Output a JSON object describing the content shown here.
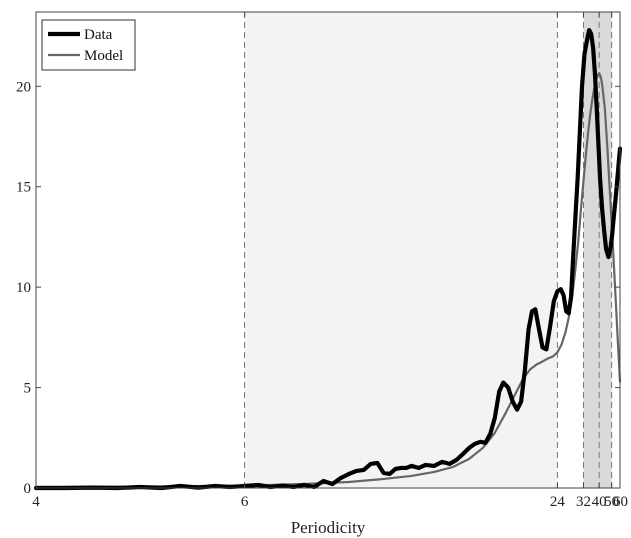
{
  "chart_data": {
    "type": "line",
    "title": "",
    "xlabel": "Periodicity",
    "ylabel": "",
    "x_scale": "reciprocal",
    "xlim": [
      4,
      60
    ],
    "ylim": [
      0,
      23.7
    ],
    "x_ticks": [
      4,
      6,
      24,
      32,
      40,
      50,
      60
    ],
    "x_tick_labels": [
      "4",
      "6",
      "24",
      "32",
      "40",
      "50",
      "60"
    ],
    "y_ticks": [
      0,
      5,
      10,
      15,
      20
    ],
    "y_tick_labels": [
      "0",
      "5",
      "10",
      "15",
      "20"
    ],
    "grid": false,
    "legend": {
      "position": "top-left"
    },
    "shaded_bands": [
      {
        "from": 6,
        "to": 24,
        "color": "#f3f3f3"
      },
      {
        "from": 32,
        "to": 50,
        "color": "#d9d9d9"
      }
    ],
    "reference_lines": [
      6,
      24,
      32,
      40,
      50
    ],
    "series": [
      {
        "name": "Data",
        "color": "#000000",
        "x": [
          4,
          4.2,
          4.4,
          4.6,
          4.8,
          5,
          5.2,
          5.4,
          5.6,
          5.8,
          6,
          6.2,
          6.4,
          6.6,
          6.8,
          7,
          7.2,
          7.4,
          7.6,
          7.8,
          8,
          8.2,
          8.4,
          8.6,
          8.8,
          9,
          9.2,
          9.4,
          9.6,
          9.8,
          10,
          10.3,
          10.6,
          11,
          11.4,
          11.8,
          12.2,
          12.6,
          13,
          13.4,
          13.8,
          14.2,
          14.6,
          15,
          15.4,
          15.8,
          16.3,
          16.8,
          17.3,
          17.8,
          18.3,
          18.8,
          19.3,
          19.8,
          20.4,
          21,
          21.7,
          22.4,
          23.2,
          24,
          24.8,
          25.5,
          26.2,
          26.9,
          27.6,
          28.3,
          29,
          29.8,
          30.6,
          31.4,
          32.4,
          33.5,
          34.5,
          35.5,
          36.5,
          37.5,
          38.5,
          39.5,
          40.6,
          42,
          43.5,
          45,
          47,
          49,
          50.5,
          52,
          54,
          56,
          58,
          60
        ],
        "values": [
          0.0,
          0.0,
          0.02,
          0.0,
          0.05,
          0.0,
          0.1,
          0.02,
          0.1,
          0.05,
          0.1,
          0.15,
          0.05,
          0.12,
          0.05,
          0.15,
          0.05,
          0.35,
          0.2,
          0.5,
          0.7,
          0.85,
          0.9,
          1.2,
          1.25,
          0.75,
          0.7,
          0.95,
          1.0,
          1.0,
          1.1,
          1.0,
          1.15,
          1.1,
          1.3,
          1.2,
          1.4,
          1.7,
          2.0,
          2.2,
          2.3,
          2.25,
          2.7,
          3.5,
          4.8,
          5.25,
          5.0,
          4.3,
          3.9,
          4.3,
          5.9,
          7.9,
          8.8,
          8.9,
          7.9,
          7.0,
          6.9,
          8.0,
          9.3,
          9.8,
          9.9,
          9.6,
          8.8,
          8.7,
          9.5,
          11.6,
          13.5,
          15.5,
          17.8,
          20.0,
          21.6,
          22.3,
          22.8,
          22.6,
          21.9,
          20.6,
          18.9,
          17.2,
          15.4,
          13.9,
          12.8,
          11.9,
          11.5,
          12.0,
          12.6,
          13.4,
          14.3,
          15.2,
          16.1,
          16.9
        ]
      },
      {
        "name": "Model",
        "color": "#666666",
        "x": [
          4,
          5,
          6,
          7,
          8,
          9,
          10,
          11,
          12,
          13,
          14,
          15,
          16,
          17,
          18,
          19,
          20,
          21,
          22,
          23,
          24,
          25,
          26,
          27,
          28,
          29,
          30,
          31,
          32,
          33,
          34,
          35,
          36,
          37,
          38,
          39,
          40,
          41,
          42,
          44,
          46,
          48,
          50,
          52,
          54,
          56,
          58,
          60
        ],
        "values": [
          0.05,
          0.08,
          0.12,
          0.2,
          0.3,
          0.45,
          0.6,
          0.8,
          1.05,
          1.45,
          2.0,
          2.75,
          3.7,
          4.6,
          5.4,
          5.9,
          6.15,
          6.3,
          6.45,
          6.55,
          6.75,
          7.15,
          7.75,
          8.55,
          9.6,
          10.9,
          12.3,
          13.9,
          15.3,
          16.6,
          17.7,
          18.6,
          19.3,
          19.85,
          20.3,
          20.55,
          20.65,
          20.5,
          20.1,
          18.9,
          17.0,
          15.0,
          13.2,
          11.4,
          9.7,
          8.1,
          6.6,
          5.3
        ]
      }
    ]
  }
}
